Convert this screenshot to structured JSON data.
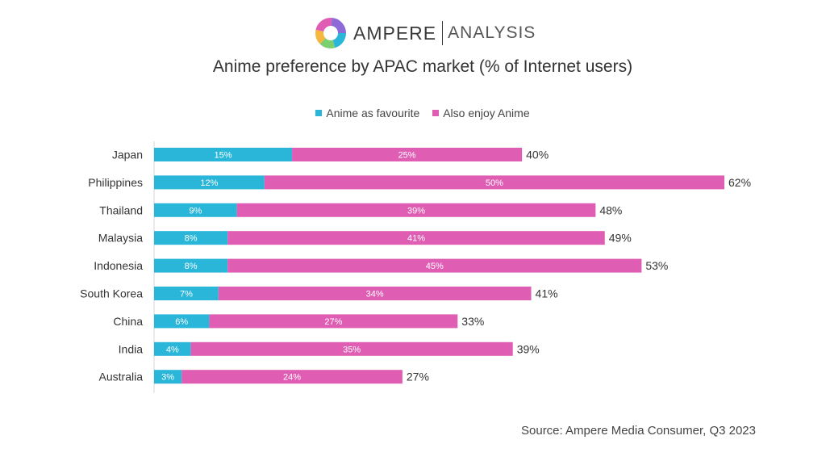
{
  "brand": {
    "name": "AMPERE",
    "subtitle": "ANALYSIS"
  },
  "chart_data": {
    "type": "bar",
    "orientation": "horizontal",
    "stacked": true,
    "title": "Anime preference by APAC market (% of Internet users)",
    "categories": [
      "Japan",
      "Philippines",
      "Thailand",
      "Malaysia",
      "Indonesia",
      "South Korea",
      "China",
      "India",
      "Australia"
    ],
    "series": [
      {
        "name": "Anime as favourite",
        "color": "#29b6d9",
        "values": [
          15,
          12,
          9,
          8,
          8,
          7,
          6,
          4,
          3
        ]
      },
      {
        "name": "Also enjoy Anime",
        "color": "#e05db4",
        "values": [
          25,
          50,
          39,
          41,
          45,
          34,
          27,
          35,
          24
        ]
      }
    ],
    "totals": [
      40,
      62,
      48,
      49,
      53,
      41,
      33,
      39,
      27
    ],
    "value_suffix": "%",
    "xlim": [
      0,
      62
    ],
    "legend_position": "top",
    "grid": false
  },
  "source": "Source: Ampere Media Consumer, Q3 2023"
}
